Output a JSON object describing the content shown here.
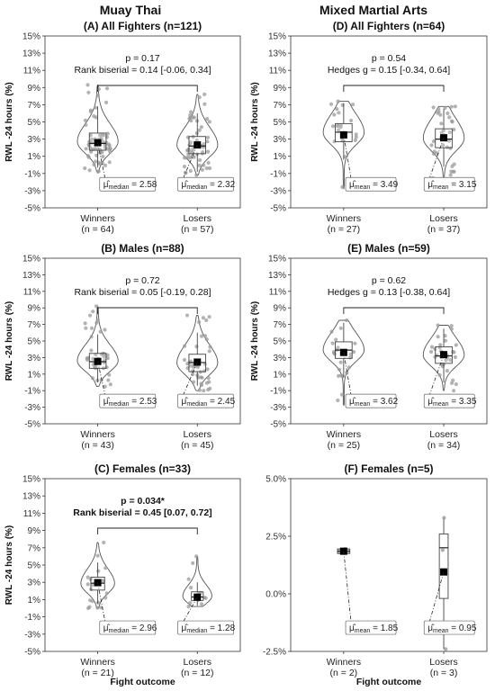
{
  "column_titles": [
    "Muay Thai",
    "Mixed Martial Arts"
  ],
  "chart_data": [
    {
      "type": "violin",
      "title": "(A) All Fighters (n=121)",
      "ylabel": "RWL -24 hours (%)",
      "xlabel": "",
      "ylim": [
        -5,
        15
      ],
      "yticks": [
        "-5%",
        "-3%",
        "-1%",
        "1%",
        "3%",
        "5%",
        "7%",
        "9%",
        "11%",
        "13%",
        "15%"
      ],
      "annotation": [
        "p = 0.17",
        "Rank biserial = 0.14 [-0.06, 0.34]"
      ],
      "annotation_bold": false,
      "stat_symbol": "μ̂",
      "stat_name": "median",
      "groups": [
        {
          "label": "Winners",
          "n_label": "(n = 64)",
          "center": 2.58,
          "center_label": "2.58",
          "q1": 1.7,
          "median": 2.5,
          "q3": 3.7,
          "wmin": -0.3,
          "wmax": 6.8,
          "min": -0.8,
          "max": 9.3,
          "width": 0.85
        },
        {
          "label": "Losers",
          "n_label": "(n = 57)",
          "center": 2.32,
          "center_label": "2.32",
          "q1": 1.3,
          "median": 2.2,
          "q3": 3.3,
          "wmin": -0.8,
          "wmax": 6.0,
          "min": -1.2,
          "max": 8.2,
          "width": 0.85
        }
      ]
    },
    {
      "type": "violin",
      "title": "(D) All Fighters (n=64)",
      "ylabel": "RWL -24 hours (%)",
      "xlabel": "",
      "ylim": [
        -5,
        15
      ],
      "yticks": [
        "-5%",
        "-3%",
        "-1%",
        "1%",
        "3%",
        "5%",
        "7%",
        "9%",
        "11%",
        "13%",
        "15%"
      ],
      "annotation": [
        "p = 0.54",
        "Hedges g = 0.15 [-0.34, 0.64]"
      ],
      "annotation_bold": false,
      "stat_symbol": "μ̂",
      "stat_name": "mean",
      "groups": [
        {
          "label": "Winners",
          "n_label": "(n = 27)",
          "center": 3.49,
          "center_label": "3.49",
          "q1": 2.7,
          "median": 3.8,
          "q3": 4.8,
          "wmin": 0.6,
          "wmax": 7.2,
          "min": -2.8,
          "max": 7.4,
          "width": 0.85
        },
        {
          "label": "Losers",
          "n_label": "(n = 37)",
          "center": 3.15,
          "center_label": "3.15",
          "q1": 2.0,
          "median": 3.0,
          "q3": 4.2,
          "wmin": -0.2,
          "wmax": 6.5,
          "min": -2.6,
          "max": 6.8,
          "width": 0.85
        }
      ]
    },
    {
      "type": "violin",
      "title": "(B) Males (n=88)",
      "ylabel": "RWL -24 hours (%)",
      "xlabel": "",
      "ylim": [
        -5,
        15
      ],
      "yticks": [
        "-5%",
        "-3%",
        "-1%",
        "1%",
        "3%",
        "5%",
        "7%",
        "9%",
        "11%",
        "13%",
        "15%"
      ],
      "annotation": [
        "p = 0.72",
        "Rank biserial = 0.05 [-0.19, 0.28]"
      ],
      "annotation_bold": false,
      "stat_symbol": "μ̂",
      "stat_name": "median",
      "groups": [
        {
          "label": "Winners",
          "n_label": "(n = 43)",
          "center": 2.53,
          "center_label": "2.53",
          "q1": 1.7,
          "median": 2.5,
          "q3": 3.5,
          "wmin": 0.0,
          "wmax": 5.8,
          "min": -0.5,
          "max": 9.2,
          "width": 0.85
        },
        {
          "label": "Losers",
          "n_label": "(n = 45)",
          "center": 2.45,
          "center_label": "2.45",
          "q1": 1.3,
          "median": 2.4,
          "q3": 3.4,
          "wmin": -0.4,
          "wmax": 6.0,
          "min": -1.0,
          "max": 8.1,
          "width": 0.85
        }
      ]
    },
    {
      "type": "violin",
      "title": "(E) Males (n=59)",
      "ylabel": "RWL -24 hours (%)",
      "xlabel": "",
      "ylim": [
        -5,
        15
      ],
      "yticks": [
        "-5%",
        "-3%",
        "-1%",
        "1%",
        "3%",
        "5%",
        "7%",
        "9%",
        "11%",
        "13%",
        "15%"
      ],
      "annotation": [
        "p = 0.62",
        "Hedges g = 0.13 [-0.38, 0.64]"
      ],
      "annotation_bold": false,
      "stat_symbol": "μ̂",
      "stat_name": "mean",
      "groups": [
        {
          "label": "Winners",
          "n_label": "(n = 25)",
          "center": 3.62,
          "center_label": "3.62",
          "q1": 2.9,
          "median": 3.9,
          "q3": 4.9,
          "wmin": 0.6,
          "wmax": 7.2,
          "min": -2.8,
          "max": 7.5,
          "width": 0.85
        },
        {
          "label": "Losers",
          "n_label": "(n = 34)",
          "center": 3.35,
          "center_label": "3.35",
          "q1": 2.3,
          "median": 3.2,
          "q3": 4.3,
          "wmin": 0.0,
          "wmax": 6.5,
          "min": -1.0,
          "max": 6.9,
          "width": 0.85
        }
      ]
    },
    {
      "type": "violin",
      "title": "(C) Females (n=33)",
      "ylabel": "RWL -24 hours (%)",
      "xlabel": "Fight outcome",
      "ylim": [
        -5,
        15
      ],
      "yticks": [
        "-5%",
        "-3%",
        "-1%",
        "1%",
        "3%",
        "5%",
        "7%",
        "9%",
        "11%",
        "13%",
        "15%"
      ],
      "annotation": [
        "p = 0.034*",
        "Rank biserial = 0.45 [0.07, 0.72]"
      ],
      "annotation_bold": true,
      "stat_symbol": "μ̂",
      "stat_name": "median",
      "groups": [
        {
          "label": "Winners",
          "n_label": "(n = 21)",
          "center": 2.96,
          "center_label": "2.96",
          "q1": 2.1,
          "median": 2.9,
          "q3": 3.6,
          "wmin": 0.5,
          "wmax": 5.3,
          "min": 0.0,
          "max": 7.6,
          "width": 0.7
        },
        {
          "label": "Losers",
          "n_label": "(n = 12)",
          "center": 1.28,
          "center_label": "1.28",
          "q1": 0.9,
          "median": 1.3,
          "q3": 1.9,
          "wmin": 0.3,
          "wmax": 3.0,
          "min": 0.2,
          "max": 6.0,
          "width": 0.6
        }
      ]
    },
    {
      "type": "box",
      "title": "(F) Females (n=5)",
      "ylabel": "",
      "xlabel": "Fight outcome",
      "ylim": [
        -2.5,
        5.0
      ],
      "yticks": [
        "-2.5%",
        "0.0%",
        "2.5%",
        "5.0%"
      ],
      "annotation": [],
      "annotation_bold": false,
      "stat_symbol": "μ̂",
      "stat_name": "mean",
      "groups": [
        {
          "label": "Winners",
          "n_label": "(n = 2)",
          "center": 1.85,
          "center_label": "1.85",
          "q1": 1.75,
          "median": 1.85,
          "q3": 1.95,
          "wmin": 1.75,
          "wmax": 1.95,
          "min": 1.75,
          "max": 1.95,
          "width": 0.7
        },
        {
          "label": "Losers",
          "n_label": "(n = 3)",
          "center": 0.95,
          "center_label": "0.95",
          "q1": -0.2,
          "median": 2.0,
          "q3": 2.6,
          "wmin": -2.4,
          "wmax": 3.3,
          "min": -2.4,
          "max": 3.3,
          "width": 0.5
        }
      ]
    }
  ]
}
